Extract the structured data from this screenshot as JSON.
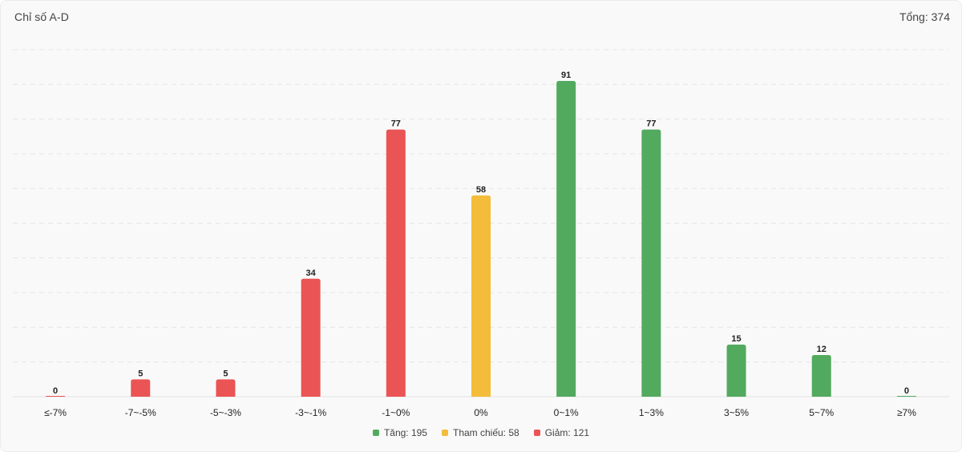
{
  "header": {
    "title": "Chỉ số A-D",
    "total": "Tổng: 374"
  },
  "colors": {
    "up": "#52aa5e",
    "ref": "#f3bc3a",
    "down": "#ea5455"
  },
  "legend": [
    {
      "label": "Tăng: 195",
      "color": "#52aa5e"
    },
    {
      "label": "Tham chiếu: 58",
      "color": "#f3bc3a"
    },
    {
      "label": "Giảm: 121",
      "color": "#ea5455"
    }
  ],
  "chart_data": {
    "type": "bar",
    "title": "Chỉ số A-D",
    "categories": [
      "≤-7%",
      "-7~-5%",
      "-5~-3%",
      "-3~-1%",
      "-1~0%",
      "0%",
      "0~1%",
      "1~3%",
      "3~5%",
      "5~7%",
      "≥7%"
    ],
    "values": [
      0,
      5,
      5,
      34,
      77,
      58,
      91,
      77,
      15,
      12,
      0
    ],
    "colors": [
      "#ea5455",
      "#ea5455",
      "#ea5455",
      "#ea5455",
      "#ea5455",
      "#f3bc3a",
      "#52aa5e",
      "#52aa5e",
      "#52aa5e",
      "#52aa5e",
      "#52aa5e"
    ],
    "ylim": [
      0,
      100
    ],
    "grid": true,
    "legend_position": "bottom"
  }
}
